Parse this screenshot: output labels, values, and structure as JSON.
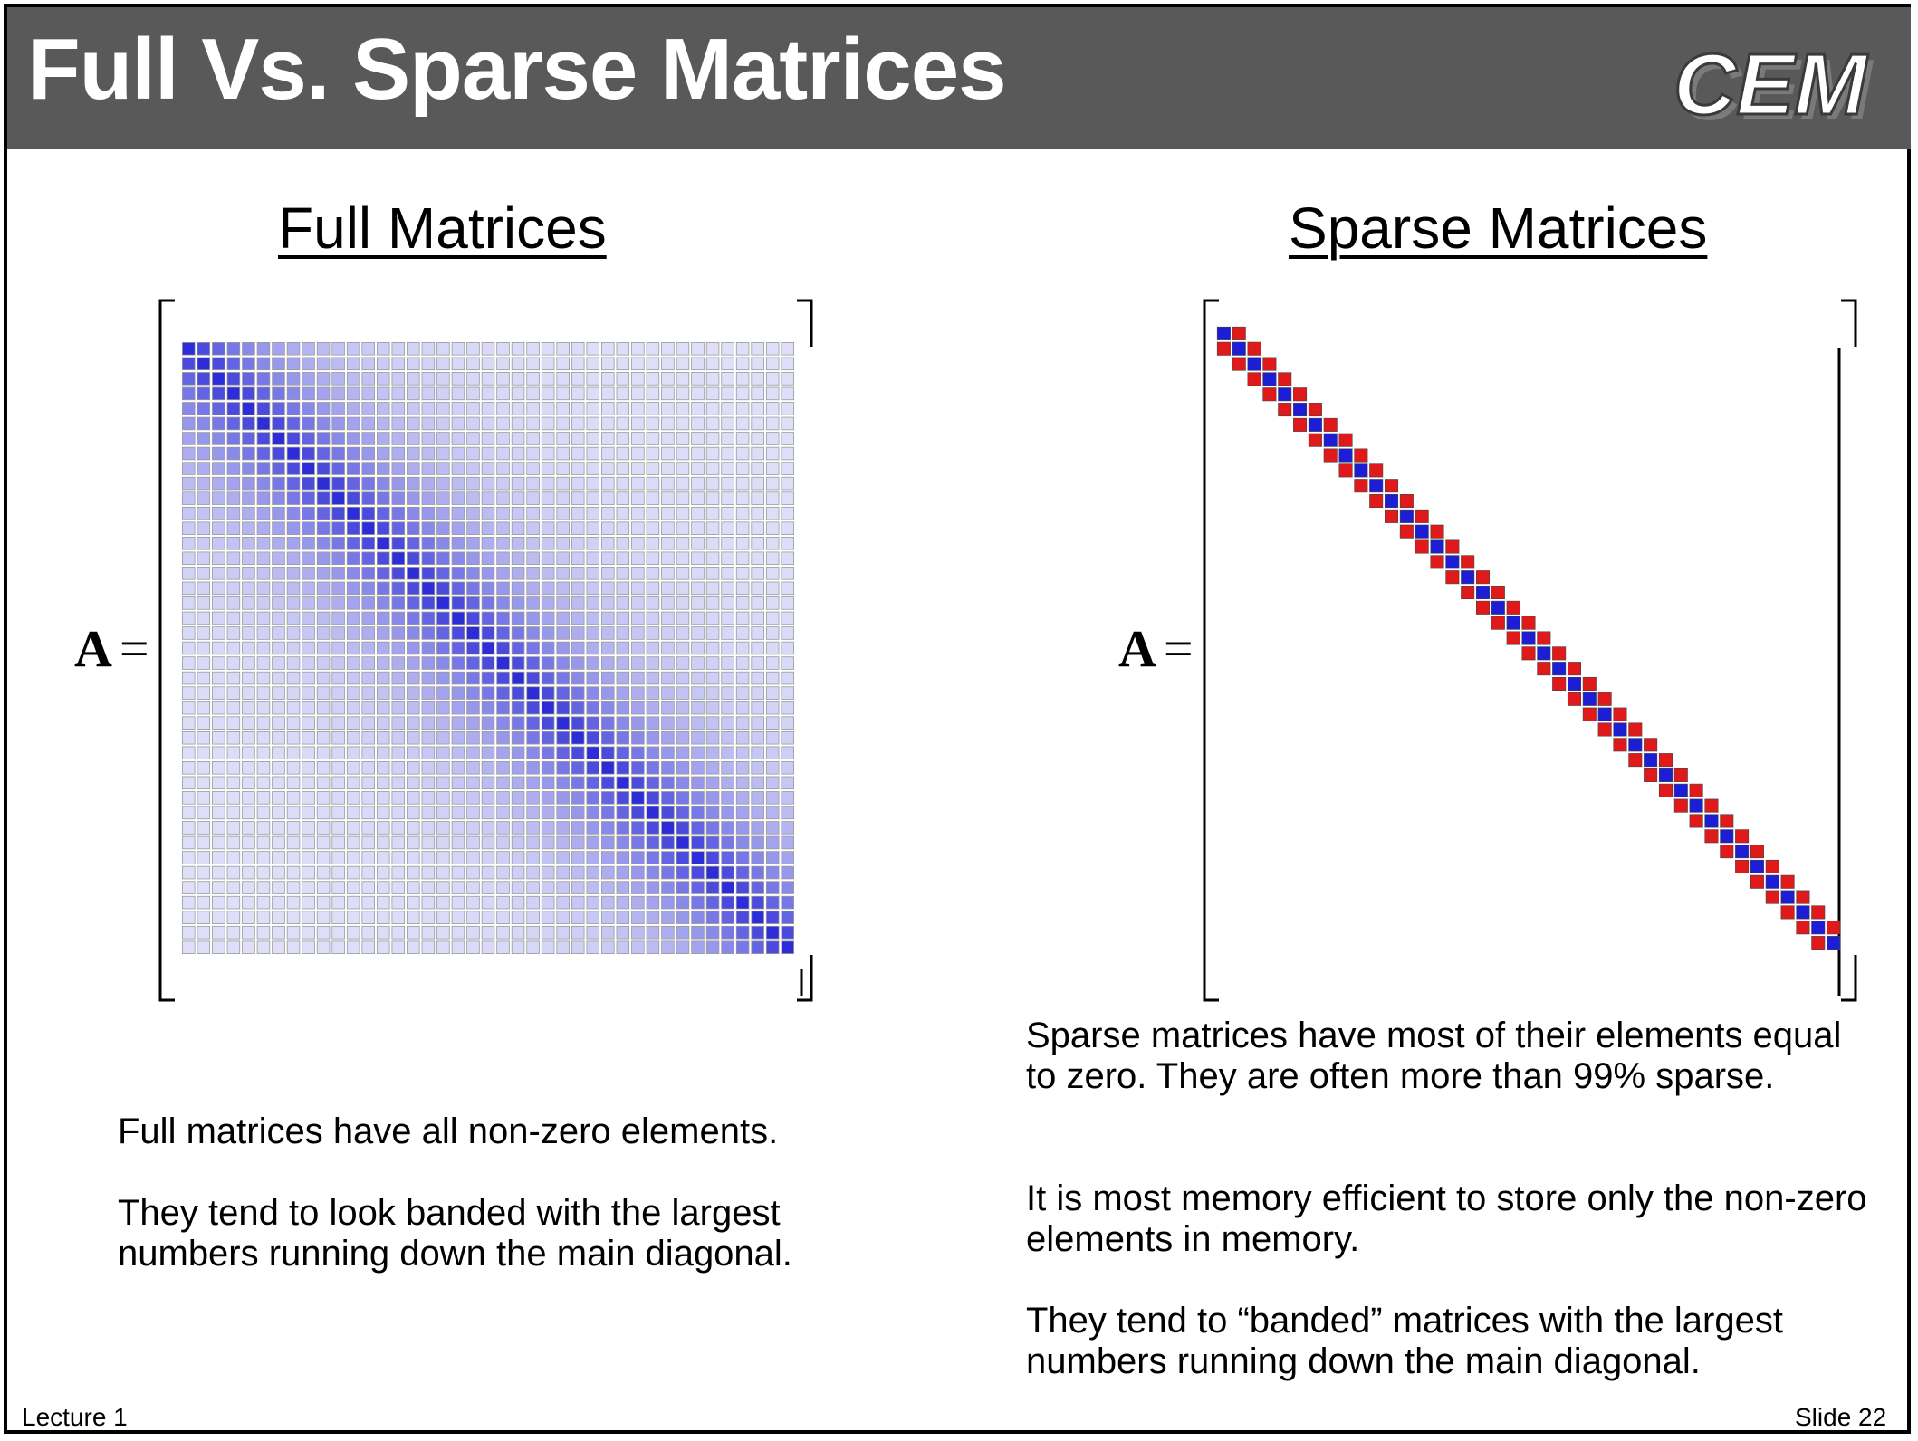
{
  "slide": {
    "title": "Full Vs. Sparse Matrices",
    "logo_text": "CEM",
    "footer_left": "Lecture 1",
    "footer_right": "Slide 22"
  },
  "left": {
    "heading": "Full Matrices",
    "equation_var": "A",
    "equation_op": "=",
    "matrix": {
      "size": 41,
      "kind": "full",
      "cell_color": "#1a1ad6",
      "cell_outline": "#9a9a9a"
    },
    "paragraphs": [
      "Full matrices have all non-zero elements.",
      "They tend to look banded with the largest numbers running down the main diagonal."
    ]
  },
  "right": {
    "heading": "Sparse Matrices",
    "equation_var": "A",
    "equation_op": "=",
    "matrix": {
      "size": 41,
      "kind": "tridiagonal",
      "diag_color": "#1d1dd6",
      "offdiag_color": "#e01a1a"
    },
    "paragraphs": [
      "Sparse matrices have most of their elements equal to zero.  They are often more than 99% sparse.",
      "It is most memory efficient to store only the non-zero elements in memory.",
      "They tend to “banded” matrices with the largest numbers running down the main diagonal."
    ]
  }
}
